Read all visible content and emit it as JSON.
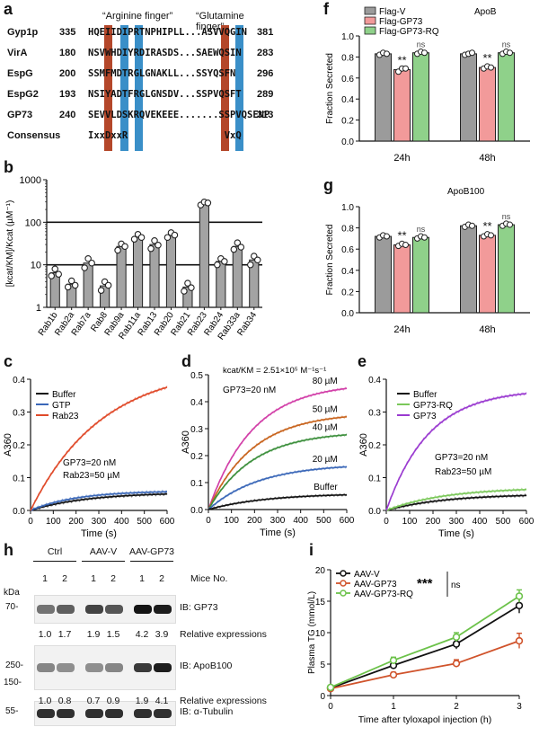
{
  "panel_a": {
    "label": "a",
    "header_left": "“Arginine finger”",
    "header_right": "“Glutamine finger”",
    "rows": [
      {
        "name": "Gyp1p",
        "start": "335",
        "seq": "HQEIIDIPRTNPHIPLL...ASVVQGIN",
        "end": "381"
      },
      {
        "name": "VirA",
        "start": "180",
        "seq": "NSVWHDIYRDIRASDS...SAEWQSIN",
        "end": "283"
      },
      {
        "name": "EspG",
        "start": "200",
        "seq": "SSMFMDTRGLGNAKLL...SSYQSFN",
        "end": "296"
      },
      {
        "name": "EspG2",
        "start": "193",
        "seq": "NSIYADTFRGLGNSDV...SSPVQSFT",
        "end": "289"
      },
      {
        "name": "GP73",
        "start": "240",
        "seq": "SEVVLDSKRQVEKEEE.......SSPVQSENP",
        "end": "313"
      },
      {
        "name": "Consensus",
        "start": "",
        "seq": "IxxDxxR                 VxQ",
        "end": ""
      }
    ]
  },
  "chart_data": [
    {
      "id": "b",
      "type": "bar",
      "panel_label": "b",
      "ylabel": "[kcat/KM]/Kcat (µM⁻¹)",
      "yscale": "log",
      "ylim": [
        1,
        1000
      ],
      "yticks": [
        "1",
        "10",
        "100",
        "1000"
      ],
      "reference_lines": [
        10,
        100
      ],
      "categories": [
        "Rab1b",
        "Rab2a",
        "Rab7a",
        "Rab8",
        "Rab9a",
        "Rab11a",
        "Rab13",
        "Rab20",
        "Rab21",
        "Rab23",
        "Rab24",
        "Rab33a",
        "Rab34"
      ],
      "values": [
        6.5,
        3.5,
        11,
        3.2,
        27,
        45,
        30,
        50,
        3.0,
        280,
        12,
        27,
        13
      ],
      "points": [
        [
          5.5,
          8,
          6
        ],
        [
          3,
          4.2,
          3.3
        ],
        [
          8.5,
          14,
          11
        ],
        [
          2.5,
          4,
          3.3
        ],
        [
          22,
          31,
          27
        ],
        [
          40,
          52,
          44
        ],
        [
          24,
          37,
          29
        ],
        [
          44,
          57,
          50
        ],
        [
          2.4,
          3.7,
          2.9
        ],
        [
          255,
          300,
          285
        ],
        [
          10,
          14,
          12
        ],
        [
          23,
          33,
          26
        ],
        [
          10,
          16,
          13
        ]
      ]
    },
    {
      "id": "c",
      "type": "line",
      "panel_label": "c",
      "xlabel": "Time (s)",
      "ylabel": "A360",
      "xlim": [
        0,
        600
      ],
      "ylim": [
        0,
        0.4
      ],
      "xticks": [
        "0",
        "100",
        "200",
        "300",
        "400",
        "500",
        "600"
      ],
      "yticks": [
        "0.0",
        "0.1",
        "0.2",
        "0.3",
        "0.4"
      ],
      "annotations": [
        "GP73=20 nM",
        "Rab23=50 µM"
      ],
      "series": [
        {
          "name": "Buffer",
          "color": "#111111",
          "amp": 0.055,
          "k": 0.004
        },
        {
          "name": "GTP",
          "color": "#3a67b8",
          "amp": 0.06,
          "k": 0.005
        },
        {
          "name": "Rab23",
          "color": "#e04a2a",
          "amp": 0.44,
          "k": 0.0032
        }
      ]
    },
    {
      "id": "d",
      "type": "line",
      "panel_label": "d",
      "xlabel": "Time (s)",
      "ylabel": "A360",
      "xlim": [
        0,
        600
      ],
      "ylim": [
        0,
        0.5
      ],
      "xticks": [
        "0",
        "100",
        "200",
        "300",
        "400",
        "500",
        "600"
      ],
      "yticks": [
        "0.0",
        "0.1",
        "0.2",
        "0.3",
        "0.4",
        "0.5"
      ],
      "annotations": [
        "kcat/KM = 2.51×10⁵ M⁻¹s⁻¹",
        "GP73=20 nM"
      ],
      "series": [
        {
          "name": "80 µM",
          "color": "#d23fa8",
          "amp": 0.47,
          "k": 0.0052
        },
        {
          "name": "50 µM",
          "color": "#c8641e",
          "amp": 0.36,
          "k": 0.0052
        },
        {
          "name": "40 µM",
          "color": "#3c8f3c",
          "amp": 0.29,
          "k": 0.0052
        },
        {
          "name": "20 µM",
          "color": "#3a67b8",
          "amp": 0.17,
          "k": 0.0045
        },
        {
          "name": "Buffer",
          "color": "#111111",
          "amp": 0.06,
          "k": 0.004
        }
      ]
    },
    {
      "id": "e",
      "type": "line",
      "panel_label": "e",
      "xlabel": "Time (s)",
      "ylabel": "A360",
      "xlim": [
        0,
        600
      ],
      "ylim": [
        0,
        0.4
      ],
      "xticks": [
        "0",
        "100",
        "200",
        "300",
        "400",
        "500",
        "600"
      ],
      "yticks": [
        "0.0",
        "0.1",
        "0.2",
        "0.3",
        "0.4"
      ],
      "annotations": [
        "GP73=20 nM",
        "Rab23=50 µM"
      ],
      "series": [
        {
          "name": "Buffer",
          "color": "#111111",
          "amp": 0.05,
          "k": 0.004
        },
        {
          "name": "GP73-RQ",
          "color": "#7bc85a",
          "amp": 0.07,
          "k": 0.004
        },
        {
          "name": "GP73",
          "color": "#9a3ad0",
          "amp": 0.37,
          "k": 0.0055
        }
      ]
    },
    {
      "id": "f",
      "type": "bar",
      "panel_label": "f",
      "title": "ApoB",
      "ylabel": "Fraction Secreted",
      "ylim": [
        0,
        1.0
      ],
      "yticks": [
        "0.0",
        "0.2",
        "0.4",
        "0.6",
        "0.8",
        "1.0"
      ],
      "categories": [
        "24h",
        "48h"
      ],
      "series": [
        {
          "name": "Flag-V",
          "color": "#9b9b9b",
          "values": [
            0.83,
            0.83
          ],
          "points": [
            [
              0.82,
              0.84,
              0.83
            ],
            [
              0.82,
              0.83,
              0.84
            ]
          ]
        },
        {
          "name": "Flag-GP73",
          "color": "#f29a9a",
          "values": [
            0.68,
            0.7
          ],
          "points": [
            [
              0.66,
              0.69,
              0.69
            ],
            [
              0.69,
              0.71,
              0.7
            ]
          ]
        },
        {
          "name": "Flag-GP73-RQ",
          "color": "#8fd18a",
          "values": [
            0.84,
            0.84
          ],
          "points": [
            [
              0.83,
              0.85,
              0.84
            ],
            [
              0.83,
              0.85,
              0.84
            ]
          ]
        }
      ],
      "significance": [
        [
          "",
          "**",
          "ns"
        ],
        [
          "",
          "**",
          "ns"
        ]
      ]
    },
    {
      "id": "g",
      "type": "bar",
      "panel_label": "g",
      "title": "ApoB100",
      "ylabel": "Fraction Secreted",
      "ylim": [
        0,
        1.0
      ],
      "yticks": [
        "0.0",
        "0.2",
        "0.4",
        "0.6",
        "0.8",
        "1.0"
      ],
      "categories": [
        "24h",
        "48h"
      ],
      "series": [
        {
          "name": "Flag-V",
          "color": "#9b9b9b",
          "values": [
            0.72,
            0.82
          ],
          "points": [
            [
              0.71,
              0.73,
              0.72
            ],
            [
              0.81,
              0.83,
              0.82
            ]
          ]
        },
        {
          "name": "Flag-GP73",
          "color": "#f29a9a",
          "values": [
            0.64,
            0.73
          ],
          "points": [
            [
              0.63,
              0.65,
              0.64
            ],
            [
              0.72,
              0.74,
              0.73
            ]
          ]
        },
        {
          "name": "Flag-GP73-RQ",
          "color": "#8fd18a",
          "values": [
            0.71,
            0.83
          ],
          "points": [
            [
              0.7,
              0.72,
              0.71
            ],
            [
              0.82,
              0.84,
              0.83
            ]
          ]
        }
      ],
      "significance": [
        [
          "",
          "**",
          "ns"
        ],
        [
          "",
          "**",
          "ns"
        ]
      ]
    },
    {
      "id": "i",
      "type": "line",
      "panel_label": "i",
      "xlabel": "Time after tyloxapol injection (h)",
      "ylabel": "Plasma TG (mmol/L)",
      "xlim": [
        0,
        3
      ],
      "ylim": [
        0,
        20
      ],
      "xticks": [
        "0",
        "1",
        "2",
        "3"
      ],
      "yticks": [
        "0",
        "5",
        "10",
        "15",
        "20"
      ],
      "x": [
        0,
        1,
        2,
        3
      ],
      "significance": [
        "***",
        "ns"
      ],
      "series": [
        {
          "name": "AAV-V",
          "color": "#111111",
          "values": [
            1.2,
            4.8,
            8.2,
            14.3
          ],
          "err": [
            0.3,
            0.5,
            0.8,
            1.2
          ]
        },
        {
          "name": "AAV-GP73",
          "color": "#d0532b",
          "values": [
            1.1,
            3.3,
            5.1,
            8.7
          ],
          "err": [
            0.3,
            0.4,
            0.6,
            1.2
          ]
        },
        {
          "name": "AAV-GP73-RQ",
          "color": "#6cc24a",
          "values": [
            1.3,
            5.6,
            9.3,
            15.8
          ],
          "err": [
            0.3,
            0.5,
            0.7,
            1.0
          ]
        }
      ]
    }
  ],
  "panel_h": {
    "label": "h",
    "kda_label": "kDa",
    "groups": [
      "Ctrl",
      "AAV-V",
      "AAV-GP73"
    ],
    "lane_numbers": [
      "1",
      "2",
      "1",
      "2",
      "1",
      "2"
    ],
    "mice_label": "Mice No.",
    "blots": [
      {
        "marker": "70-",
        "ib": "IB: GP73",
        "intensity": [
          0.45,
          0.55,
          0.7,
          0.6,
          0.95,
          0.9
        ]
      },
      {
        "marker": "250-",
        "ib": "IB: ApoB100",
        "intensity": [
          0.35,
          0.3,
          0.3,
          0.35,
          0.75,
          0.9
        ]
      },
      {
        "marker": "55-",
        "ib": "IB: α-Tubulin",
        "intensity": [
          0.8,
          0.8,
          0.8,
          0.8,
          0.8,
          0.8
        ]
      }
    ],
    "marker_150": "150-",
    "expr_rows": [
      {
        "values": [
          "1.0",
          "1.7",
          "1.9",
          "1.5",
          "4.2",
          "3.9"
        ],
        "label": "Relative expressions"
      },
      {
        "values": [
          "1.0",
          "0.8",
          "0.7",
          "0.9",
          "1.9",
          "4.1"
        ],
        "label": "Relative expressions"
      }
    ]
  }
}
